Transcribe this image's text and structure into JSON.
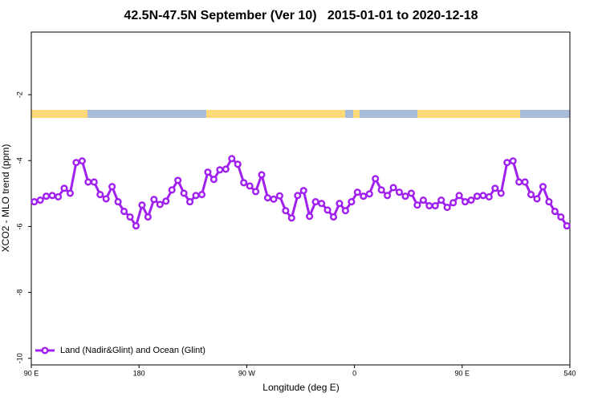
{
  "chart_data": {
    "type": "line",
    "title": "42.5N-47.5N September (Ver 10)   2015-01-01 to 2020-12-18",
    "x_label": "Longitude (deg E)",
    "y_label": "XCO2 - MLO trend (ppm)",
    "xlim": [
      90,
      540
    ],
    "ylim": [
      -10.2,
      -0.1
    ],
    "xticks": [
      {
        "value": 90,
        "label": "90 E"
      },
      180,
      {
        "value": 270,
        "label": "90 W"
      },
      {
        "value": 360,
        "label": "0"
      },
      {
        "value": 450,
        "label": "90 E"
      },
      540
    ],
    "yticks": [
      -2,
      -4,
      -6,
      -8,
      -10
    ],
    "legend_position": "lower left",
    "x": [
      92.5,
      97.5,
      102.5,
      107.5,
      112.5,
      117.5,
      122.5,
      127.5,
      132.5,
      137.5,
      142.5,
      147.5,
      152.5,
      157.5,
      162.5,
      167.5,
      172.5,
      177.5,
      182.5,
      187.5,
      192.5,
      197.5,
      202.5,
      207.5,
      212.5,
      217.5,
      222.5,
      227.5,
      232.5,
      237.5,
      242.5,
      247.5,
      252.5,
      257.5,
      262.5,
      267.5,
      272.5,
      277.5,
      282.5,
      287.5,
      292.5,
      297.5,
      302.5,
      307.5,
      312.5,
      317.5,
      322.5,
      327.5,
      332.5,
      337.5,
      342.5,
      347.5,
      352.5,
      357.5,
      362.5,
      367.5,
      372.5,
      377.5,
      382.5,
      387.5,
      392.5,
      397.5,
      402.5,
      407.5,
      412.5,
      417.5,
      422.5,
      427.5,
      432.5,
      437.5,
      442.5,
      447.5,
      452.5,
      457.5,
      462.5,
      467.5,
      472.5,
      477.5,
      482.5,
      487.5,
      492.5,
      497.5,
      502.5,
      507.5,
      512.5,
      517.5,
      522.5,
      527.5,
      532.5,
      537.5
    ],
    "series": [
      {
        "name": "Land (Nadir&Glint) and Ocean (Glint)",
        "color": "#a020f0",
        "values": [
          -5.25,
          -5.2,
          -5.08,
          -5.06,
          -5.1,
          -4.84,
          -4.99,
          -4.06,
          -4.01,
          -4.65,
          -4.65,
          -5.03,
          -5.16,
          -4.79,
          -5.25,
          -5.54,
          -5.71,
          -5.98,
          -5.35,
          -5.71,
          -5.18,
          -5.33,
          -5.23,
          -4.89,
          -4.6,
          -4.99,
          -5.25,
          -5.06,
          -5.03,
          -4.35,
          -4.57,
          -4.28,
          -4.26,
          -3.94,
          -4.11,
          -4.67,
          -4.77,
          -4.94,
          -4.43,
          -5.13,
          -5.17,
          -5.07,
          -5.52,
          -5.74,
          -5.06,
          -4.91,
          -5.69,
          -5.25,
          -5.3,
          -5.5,
          -5.71,
          -5.3,
          -5.52,
          -5.25,
          -4.96,
          -5.08,
          -5.01,
          -4.55,
          -4.89,
          -5.06,
          -4.82,
          -4.96,
          -5.08,
          -4.99,
          -5.35,
          -5.2,
          -5.37,
          -5.37,
          -5.2,
          -5.42,
          -5.28,
          -5.06,
          -5.25,
          -5.2,
          -5.08,
          -5.06,
          -5.1,
          -4.84,
          -4.99,
          -4.06,
          -4.01,
          -4.65,
          -4.65,
          -5.03,
          -5.16,
          -4.79,
          -5.25,
          -5.54,
          -5.71,
          -5.98
        ]
      }
    ]
  }
}
